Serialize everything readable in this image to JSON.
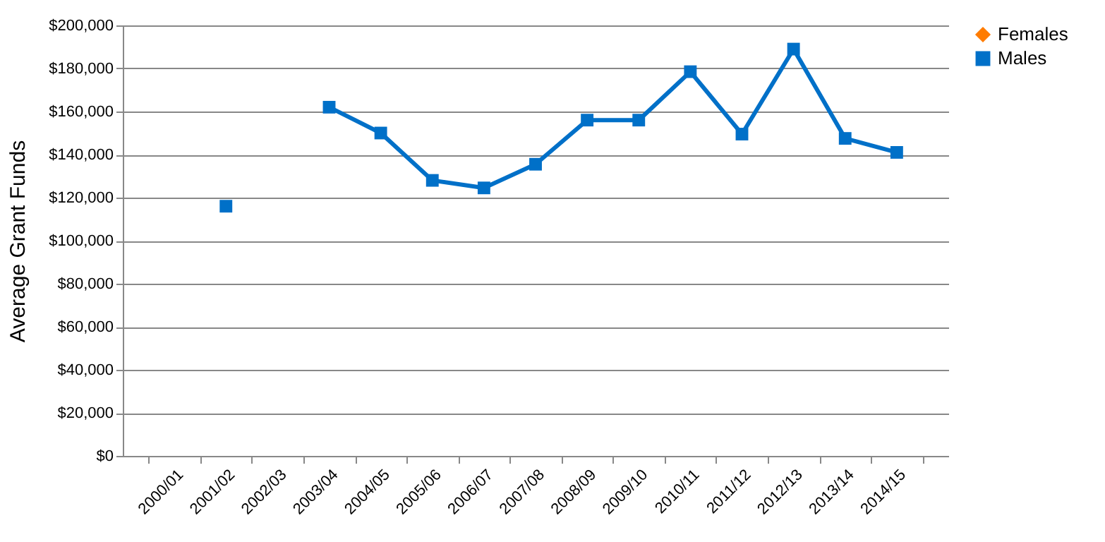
{
  "chart_data": {
    "type": "line",
    "ylabel": "Average Grant Funds",
    "categories": [
      "2000/01",
      "2001/02",
      "2002/03",
      "2003/04",
      "2004/05",
      "2005/06",
      "2006/07",
      "2007/08",
      "2008/09",
      "2009/10",
      "2010/11",
      "2011/12",
      "2012/13",
      "2013/14",
      "2014/15"
    ],
    "series": [
      {
        "name": "Females",
        "color": "#ff7c00",
        "marker": "diamond",
        "values": [
          null,
          null,
          null,
          null,
          null,
          null,
          null,
          null,
          null,
          null,
          null,
          null,
          null,
          null,
          null
        ]
      },
      {
        "name": "Males",
        "color": "#0070c8",
        "marker": "square",
        "values": [
          null,
          116000,
          null,
          162000,
          150000,
          128000,
          124500,
          135500,
          156000,
          156000,
          178500,
          149500,
          189000,
          147500,
          141000
        ]
      }
    ],
    "ylim": [
      0,
      200000
    ],
    "yticks": [
      {
        "value": 0,
        "label": "$0"
      },
      {
        "value": 20000,
        "label": "$20,000"
      },
      {
        "value": 40000,
        "label": "$40,000"
      },
      {
        "value": 60000,
        "label": "$60,000"
      },
      {
        "value": 80000,
        "label": "$80,000"
      },
      {
        "value": 100000,
        "label": "$100,000"
      },
      {
        "value": 120000,
        "label": "$120,000"
      },
      {
        "value": 140000,
        "label": "$140,000"
      },
      {
        "value": 160000,
        "label": "$160,000"
      },
      {
        "value": 180000,
        "label": "$180,000"
      },
      {
        "value": 200000,
        "label": "$200,000"
      }
    ],
    "grid": "y",
    "legend": "right",
    "line_style": "solid"
  }
}
